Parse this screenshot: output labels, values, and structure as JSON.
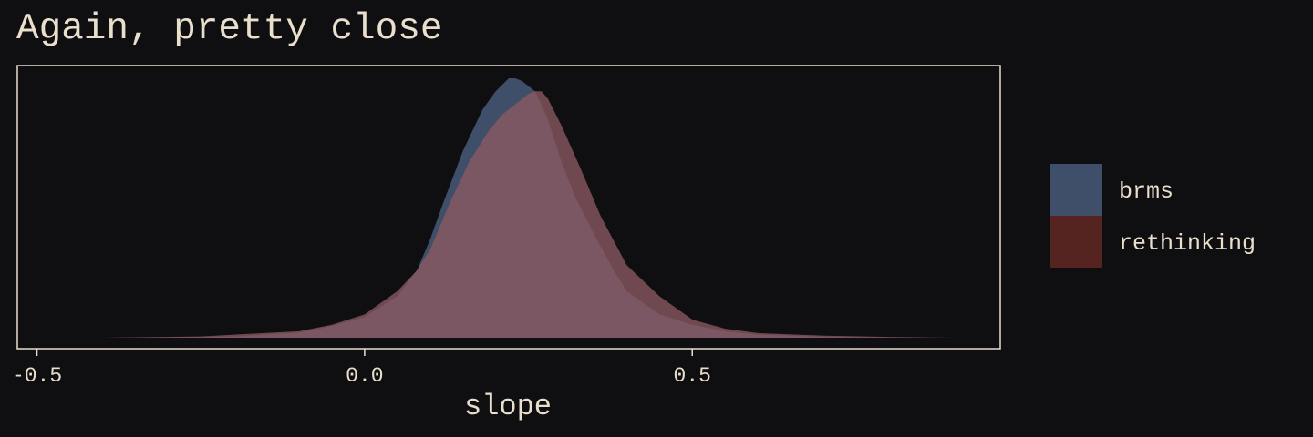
{
  "chart_data": {
    "type": "area",
    "title": "Again, pretty close",
    "xlabel": "slope",
    "ylabel": "",
    "xlim": [
      -0.53,
      0.97
    ],
    "ylim": [
      0,
      1.0
    ],
    "x_ticks": [
      -0.5,
      0.0,
      0.5
    ],
    "x_tick_labels": [
      "-0.5",
      "0.0",
      "0.5"
    ],
    "y_axis_visible": false,
    "grid": false,
    "legend_position": "right",
    "series": [
      {
        "name": "brms",
        "color": "#3f4e69",
        "x": [
          -0.35,
          -0.2,
          -0.1,
          -0.05,
          0.0,
          0.05,
          0.08,
          0.1,
          0.12,
          0.15,
          0.18,
          0.2,
          0.22,
          0.23,
          0.24,
          0.26,
          0.28,
          0.3,
          0.32,
          0.35,
          0.38,
          0.4,
          0.45,
          0.5,
          0.55,
          0.6,
          0.7,
          0.85
        ],
        "y": [
          0.0,
          0.004,
          0.02,
          0.045,
          0.08,
          0.16,
          0.26,
          0.38,
          0.52,
          0.72,
          0.88,
          0.95,
          1.0,
          1.0,
          0.99,
          0.95,
          0.84,
          0.68,
          0.55,
          0.4,
          0.26,
          0.18,
          0.09,
          0.05,
          0.025,
          0.012,
          0.003,
          0.0
        ]
      },
      {
        "name": "rethinking",
        "color": "#562420",
        "x": [
          -0.4,
          -0.25,
          -0.1,
          -0.05,
          0.0,
          0.05,
          0.08,
          0.1,
          0.13,
          0.16,
          0.19,
          0.21,
          0.23,
          0.25,
          0.26,
          0.27,
          0.28,
          0.3,
          0.33,
          0.36,
          0.4,
          0.45,
          0.5,
          0.55,
          0.6,
          0.7,
          0.8,
          0.9
        ],
        "y": [
          0.0,
          0.005,
          0.025,
          0.05,
          0.09,
          0.18,
          0.26,
          0.34,
          0.52,
          0.68,
          0.8,
          0.86,
          0.9,
          0.94,
          0.95,
          0.95,
          0.92,
          0.82,
          0.65,
          0.47,
          0.28,
          0.16,
          0.07,
          0.035,
          0.018,
          0.008,
          0.003,
          0.0
        ]
      }
    ]
  }
}
